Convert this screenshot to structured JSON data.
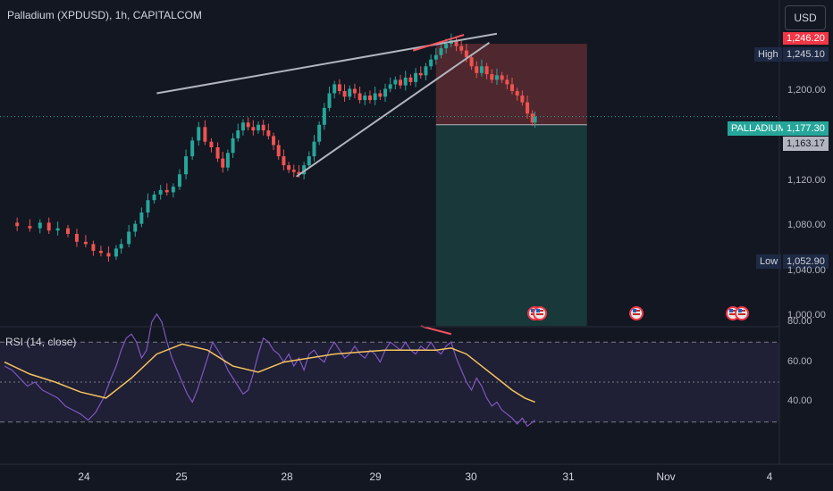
{
  "header": {
    "title": "Palladium (XPDUSD), 1h, CAPITALCOM",
    "currency": "USD"
  },
  "rsi_panel": {
    "title": "RSI (14, close)"
  },
  "price_tags": {
    "top_cut": "1,246.20",
    "high_label": "High",
    "high_value": "1,245.10",
    "symbol_label": "PALLADIUM",
    "symbol_value": "1,177.30",
    "current_value": "1,163.17",
    "low_label": "Low",
    "low_value": "1,052.90"
  },
  "colors": {
    "background": "#131722",
    "up": "#26a69a",
    "down": "#ef5350",
    "rsi_line": "#7e57c2",
    "rsi_ma": "#f5c35d",
    "trendline": "#b2b5be",
    "divergence": "#f7525f",
    "stop_zone": "#5b2a30",
    "target_zone": "#1a3c3c"
  },
  "chart_data": [
    {
      "type": "candlestick",
      "symbol": "XPDUSD",
      "interval": "1h",
      "y_axis": {
        "ticks": [
          "1,000.00",
          "1,040.00",
          "1,080.00",
          "1,120.00",
          "1,200.00"
        ],
        "range": [
          990,
          1250
        ]
      },
      "x_axis": {
        "ticks": [
          "24",
          "25",
          "28",
          "29",
          "30",
          "31",
          "Nov",
          "4"
        ]
      },
      "close_path": [
        [
          0,
          1083
        ],
        [
          10,
          1080
        ],
        [
          20,
          1078
        ],
        [
          28,
          1083
        ],
        [
          35,
          1076
        ],
        [
          42,
          1078
        ],
        [
          50,
          1073
        ],
        [
          57,
          1066
        ],
        [
          64,
          1064
        ],
        [
          70,
          1058
        ],
        [
          76,
          1056
        ],
        [
          82,
          1052.9
        ],
        [
          88,
          1060
        ],
        [
          92,
          1064
        ],
        [
          98,
          1075
        ],
        [
          103,
          1082
        ],
        [
          108,
          1092
        ],
        [
          113,
          1103
        ],
        [
          118,
          1108
        ],
        [
          123,
          1112
        ],
        [
          128,
          1110
        ],
        [
          133,
          1115
        ],
        [
          138,
          1126
        ],
        [
          143,
          1142
        ],
        [
          148,
          1156
        ],
        [
          153,
          1168
        ],
        [
          158,
          1155
        ],
        [
          163,
          1150
        ],
        [
          168,
          1140
        ],
        [
          172,
          1132
        ],
        [
          176,
          1145
        ],
        [
          180,
          1158
        ],
        [
          184,
          1165
        ],
        [
          188,
          1172
        ],
        [
          192,
          1168
        ],
        [
          196,
          1165
        ],
        [
          200,
          1170
        ],
        [
          204,
          1165
        ],
        [
          208,
          1160
        ],
        [
          212,
          1152
        ],
        [
          216,
          1142
        ],
        [
          220,
          1134
        ],
        [
          224,
          1130
        ],
        [
          228,
          1128
        ],
        [
          232,
          1126
        ],
        [
          236,
          1134
        ],
        [
          240,
          1142
        ],
        [
          244,
          1155
        ],
        [
          248,
          1170
        ],
        [
          252,
          1185
        ],
        [
          256,
          1198
        ],
        [
          260,
          1206
        ],
        [
          264,
          1200
        ],
        [
          268,
          1195
        ],
        [
          272,
          1202
        ],
        [
          276,
          1198
        ],
        [
          280,
          1192
        ],
        [
          284,
          1196
        ],
        [
          288,
          1192
        ],
        [
          292,
          1198
        ],
        [
          296,
          1195
        ],
        [
          300,
          1202
        ],
        [
          304,
          1206
        ],
        [
          308,
          1210
        ],
        [
          312,
          1205
        ],
        [
          316,
          1212
        ],
        [
          320,
          1208
        ],
        [
          324,
          1216
        ],
        [
          328,
          1214
        ],
        [
          332,
          1222
        ],
        [
          336,
          1228
        ],
        [
          340,
          1232
        ],
        [
          344,
          1238
        ],
        [
          348,
          1242
        ],
        [
          352,
          1245.1
        ],
        [
          356,
          1240
        ],
        [
          360,
          1236
        ],
        [
          364,
          1230
        ],
        [
          368,
          1222
        ],
        [
          372,
          1216
        ],
        [
          376,
          1222
        ],
        [
          380,
          1215
        ],
        [
          384,
          1210
        ],
        [
          388,
          1214
        ],
        [
          392,
          1210
        ],
        [
          396,
          1206
        ],
        [
          400,
          1200
        ],
        [
          404,
          1196
        ],
        [
          408,
          1190
        ],
        [
          412,
          1180
        ],
        [
          416,
          1172
        ],
        [
          418,
          1177.3
        ]
      ],
      "trendlines": [
        {
          "name": "wedge-upper",
          "from": [
            120,
            1198
          ],
          "to": [
            388,
            1251
          ]
        },
        {
          "name": "wedge-lower",
          "from": [
            230,
            1124
          ],
          "to": [
            382,
            1243
          ]
        },
        {
          "name": "divergence-price",
          "from": [
            322,
            1236
          ],
          "to": [
            362,
            1250
          ]
        }
      ],
      "position": {
        "entry": 1170,
        "stop": 1242,
        "target": 990
      }
    },
    {
      "type": "line",
      "name": "RSI (14, close)",
      "y_axis": {
        "ticks": [
          "40.00",
          "60.00",
          "80.00"
        ],
        "range": [
          25,
          85
        ],
        "bands": [
          30,
          50,
          70
        ]
      },
      "series": [
        {
          "name": "RSI",
          "points": [
            [
              0,
              58
            ],
            [
              6,
              56
            ],
            [
              12,
              52
            ],
            [
              18,
              48
            ],
            [
              24,
              50
            ],
            [
              30,
              46
            ],
            [
              36,
              44
            ],
            [
              42,
              42
            ],
            [
              48,
              38
            ],
            [
              54,
              36
            ],
            [
              60,
              34
            ],
            [
              66,
              31
            ],
            [
              72,
              35
            ],
            [
              78,
              42
            ],
            [
              84,
              52
            ],
            [
              88,
              58
            ],
            [
              92,
              66
            ],
            [
              96,
              72
            ],
            [
              100,
              74
            ],
            [
              104,
              70
            ],
            [
              108,
              62
            ],
            [
              112,
              66
            ],
            [
              116,
              80
            ],
            [
              120,
              84
            ],
            [
              124,
              80
            ],
            [
              128,
              70
            ],
            [
              132,
              62
            ],
            [
              136,
              56
            ],
            [
              140,
              50
            ],
            [
              144,
              44
            ],
            [
              148,
              40
            ],
            [
              152,
              46
            ],
            [
              156,
              54
            ],
            [
              160,
              62
            ],
            [
              164,
              70
            ],
            [
              168,
              66
            ],
            [
              172,
              62
            ],
            [
              176,
              56
            ],
            [
              180,
              52
            ],
            [
              184,
              48
            ],
            [
              188,
              44
            ],
            [
              192,
              46
            ],
            [
              196,
              54
            ],
            [
              200,
              64
            ],
            [
              204,
              72
            ],
            [
              208,
              70
            ],
            [
              212,
              66
            ],
            [
              216,
              64
            ],
            [
              220,
              60
            ],
            [
              224,
              64
            ],
            [
              228,
              58
            ],
            [
              232,
              62
            ],
            [
              236,
              56
            ],
            [
              240,
              64
            ],
            [
              244,
              66
            ],
            [
              248,
              62
            ],
            [
              252,
              60
            ],
            [
              256,
              66
            ],
            [
              260,
              70
            ],
            [
              264,
              66
            ],
            [
              268,
              62
            ],
            [
              272,
              64
            ],
            [
              276,
              68
            ],
            [
              280,
              64
            ],
            [
              284,
              62
            ],
            [
              288,
              66
            ],
            [
              292,
              64
            ],
            [
              296,
              60
            ],
            [
              300,
              66
            ],
            [
              304,
              70
            ],
            [
              308,
              68
            ],
            [
              312,
              66
            ],
            [
              316,
              70
            ],
            [
              320,
              66
            ],
            [
              324,
              64
            ],
            [
              328,
              68
            ],
            [
              332,
              66
            ],
            [
              336,
              70
            ],
            [
              340,
              66
            ],
            [
              344,
              64
            ],
            [
              348,
              68
            ],
            [
              352,
              70
            ],
            [
              356,
              62
            ],
            [
              360,
              56
            ],
            [
              364,
              50
            ],
            [
              368,
              46
            ],
            [
              372,
              52
            ],
            [
              376,
              48
            ],
            [
              380,
              42
            ],
            [
              384,
              38
            ],
            [
              388,
              40
            ],
            [
              392,
              36
            ],
            [
              396,
              34
            ],
            [
              400,
              32
            ],
            [
              404,
              29
            ],
            [
              408,
              32
            ],
            [
              412,
              28
            ],
            [
              418,
              31
            ]
          ]
        },
        {
          "name": "RSI-based MA",
          "points": [
            [
              0,
              60
            ],
            [
              20,
              54
            ],
            [
              40,
              50
            ],
            [
              60,
              45
            ],
            [
              80,
              42
            ],
            [
              100,
              52
            ],
            [
              120,
              64
            ],
            [
              140,
              69
            ],
            [
              160,
              66
            ],
            [
              180,
              58
            ],
            [
              200,
              55
            ],
            [
              220,
              60
            ],
            [
              240,
              62
            ],
            [
              260,
              64
            ],
            [
              280,
              65
            ],
            [
              300,
              66
            ],
            [
              320,
              66
            ],
            [
              340,
              66
            ],
            [
              352,
              67
            ],
            [
              364,
              64
            ],
            [
              376,
              58
            ],
            [
              388,
              52
            ],
            [
              400,
              46
            ],
            [
              410,
              42
            ],
            [
              418,
              40
            ]
          ]
        }
      ],
      "divergence": {
        "from": [
          328,
          70
        ],
        "to": [
          352,
          66
        ]
      }
    }
  ]
}
